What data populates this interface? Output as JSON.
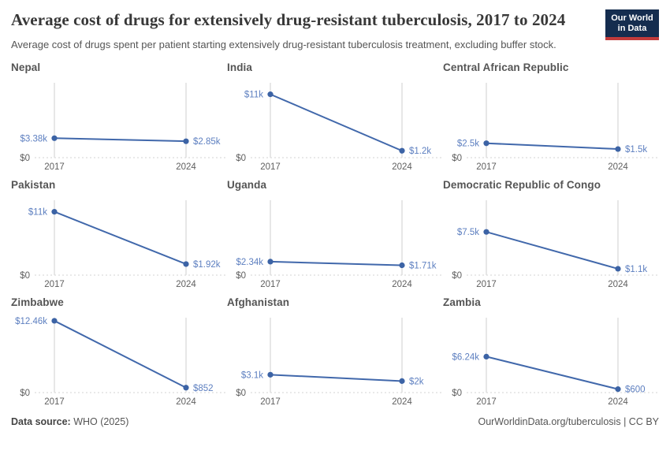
{
  "header": {
    "title": "Average cost of drugs for extensively drug-resistant tuberculosis, 2017 to 2024",
    "subtitle": "Average cost of drugs spent per patient starting extensively drug-resistant tuberculosis treatment, excluding buffer stock.",
    "logo": {
      "line1": "Our World",
      "line2": "in Data"
    }
  },
  "chart_data": {
    "type": "line",
    "title": "Average cost of drugs for extensively drug-resistant tuberculosis, 2017 to 2024",
    "x": [
      2017,
      2024
    ],
    "x_tick_labels": [
      "2017",
      "2024"
    ],
    "ylim": [
      0,
      13000
    ],
    "y_zero_label": "$0",
    "grid": "vertical gridlines at each year, dotted zero baseline",
    "legend_position": "none",
    "facets": [
      {
        "title": "Nepal",
        "values": [
          3380,
          2850
        ],
        "labels": [
          "$3.38k",
          "$2.85k"
        ]
      },
      {
        "title": "India",
        "values": [
          11000,
          1200
        ],
        "labels": [
          "$11k",
          "$1.2k"
        ]
      },
      {
        "title": "Central African Republic",
        "values": [
          2500,
          1500
        ],
        "labels": [
          "$2.5k",
          "$1.5k"
        ]
      },
      {
        "title": "Pakistan",
        "values": [
          11000,
          1920
        ],
        "labels": [
          "$11k",
          "$1.92k"
        ]
      },
      {
        "title": "Uganda",
        "values": [
          2340,
          1710
        ],
        "labels": [
          "$2.34k",
          "$1.71k"
        ]
      },
      {
        "title": "Democratic Republic of Congo",
        "values": [
          7500,
          1100
        ],
        "labels": [
          "$7.5k",
          "$1.1k"
        ]
      },
      {
        "title": "Zimbabwe",
        "values": [
          12460,
          852
        ],
        "labels": [
          "$12.46k",
          "$852"
        ]
      },
      {
        "title": "Afghanistan",
        "values": [
          3100,
          2000
        ],
        "labels": [
          "$3.1k",
          "$2k"
        ]
      },
      {
        "title": "Zambia",
        "values": [
          6240,
          600
        ],
        "labels": [
          "$6.24k",
          "$600"
        ]
      }
    ]
  },
  "footer": {
    "source_label": "Data source:",
    "source_value": "WHO (2025)",
    "link": "OurWorldinData.org/tuberculosis",
    "separator": "|",
    "license": "CC BY"
  },
  "colors": {
    "line": "#4168ab",
    "point": "#3c63a5",
    "value_label": "#5d7fc0",
    "gridline": "#cfcfcf",
    "baseline": "#dcdcdc",
    "logo_navy": "#152d4f",
    "logo_red": "#c23b3b"
  }
}
